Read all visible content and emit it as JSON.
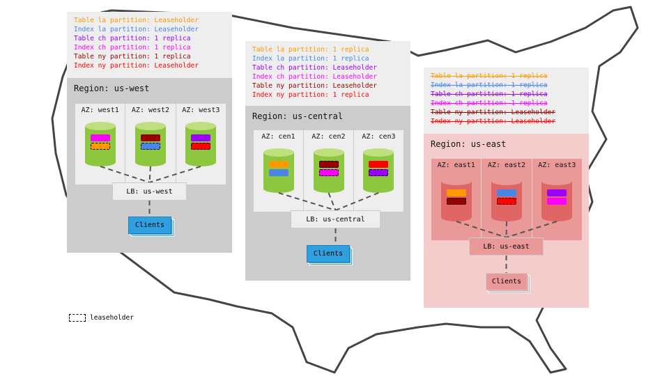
{
  "regions": [
    {
      "id": "us-west",
      "title": "Region: us-west",
      "strike": false,
      "theme": {
        "bg": "#cccccc",
        "az": "#eeeeee",
        "divider": "#cccccc",
        "cyl": "#8dc63f",
        "cyltop": "#bfe07f",
        "lb": "#eeeeee",
        "clients": "#2f9fdf",
        "clientsBorder": "#1d7fbf"
      },
      "lines": [
        {
          "text": "Table la partition: Leaseholder",
          "color": "#ff9900"
        },
        {
          "text": "Index la partition: Leaseholder",
          "color": "#4a86e8"
        },
        {
          "text": "Table ch partition: 1 replica",
          "color": "#9900ff"
        },
        {
          "text": "Index ch partition: 1 replica",
          "color": "#ff00ff"
        },
        {
          "text": "Table ny partition: 1 replica",
          "color": "#990000"
        },
        {
          "text": "Index ny partition: Leaseholder",
          "color": "#ff0000"
        }
      ],
      "azs": [
        {
          "label": "AZ: west1",
          "blocks": [
            {
              "color": "#ff00ff",
              "dashed": false
            },
            {
              "color": "#ff9900",
              "dashed": true
            }
          ]
        },
        {
          "label": "AZ: west2",
          "blocks": [
            {
              "color": "#990000",
              "dashed": false
            },
            {
              "color": "#4a86e8",
              "dashed": true
            }
          ]
        },
        {
          "label": "AZ: west3",
          "blocks": [
            {
              "color": "#9900ff",
              "dashed": false
            },
            {
              "color": "#ff0000",
              "dashed": true
            }
          ]
        }
      ],
      "lb": "LB: us-west",
      "clients": "Clients"
    },
    {
      "id": "us-central",
      "title": "Region: us-central",
      "strike": false,
      "theme": {
        "bg": "#cccccc",
        "az": "#eeeeee",
        "divider": "#cccccc",
        "cyl": "#8dc63f",
        "cyltop": "#bfe07f",
        "lb": "#eeeeee",
        "clients": "#2f9fdf",
        "clientsBorder": "#1d7fbf"
      },
      "lines": [
        {
          "text": "Table la partition: 1 replica",
          "color": "#ff9900"
        },
        {
          "text": "Index la partition: 1 replica",
          "color": "#4a86e8"
        },
        {
          "text": "Table ch partition: Leaseholder",
          "color": "#9900ff"
        },
        {
          "text": "Index ch partition: Leaseholder",
          "color": "#ff00ff"
        },
        {
          "text": "Table ny partition: Leaseholder",
          "color": "#990000"
        },
        {
          "text": "Index ny partition: 1 replica",
          "color": "#ff0000"
        }
      ],
      "azs": [
        {
          "label": "AZ: cen1",
          "blocks": [
            {
              "color": "#ff9900",
              "dashed": false
            },
            {
              "color": "#4a86e8",
              "dashed": false
            }
          ]
        },
        {
          "label": "AZ: cen2",
          "blocks": [
            {
              "color": "#990000",
              "dashed": true
            },
            {
              "color": "#ff00ff",
              "dashed": true
            }
          ]
        },
        {
          "label": "AZ: cen3",
          "blocks": [
            {
              "color": "#ff0000",
              "dashed": false
            },
            {
              "color": "#9900ff",
              "dashed": true
            }
          ]
        }
      ],
      "lb": "LB: us-central",
      "clients": "Clients"
    },
    {
      "id": "us-east",
      "title": "Region: us-east",
      "strike": true,
      "theme": {
        "bg": "#f4cccc",
        "az": "#ea9999",
        "divider": "#f4cccc",
        "cyl": "#e06666",
        "cyltop": "#ea9999",
        "lb": "#ea9999",
        "clients": "#ea9999",
        "clientsBorder": "#cccccc"
      },
      "lines": [
        {
          "text": "Table la partition: 1 replica",
          "color": "#ff9900"
        },
        {
          "text": "Index la partition: 1 replica",
          "color": "#4a86e8"
        },
        {
          "text": "Table ch partition: 1 replica",
          "color": "#9900ff"
        },
        {
          "text": "Index ch partition: 1 replica",
          "color": "#ff00ff"
        },
        {
          "text": "Table ny partition: Leaseholder",
          "color": "#990000"
        },
        {
          "text": "Index ny partition: Leaseholder",
          "color": "#ff0000"
        }
      ],
      "azs": [
        {
          "label": "AZ: east1",
          "blocks": [
            {
              "color": "#ff9900",
              "dashed": false
            },
            {
              "color": "#990000",
              "dashed": true
            }
          ]
        },
        {
          "label": "AZ: east2",
          "blocks": [
            {
              "color": "#4a86e8",
              "dashed": false
            },
            {
              "color": "#ff0000",
              "dashed": true
            }
          ]
        },
        {
          "label": "AZ: east3",
          "blocks": [
            {
              "color": "#9900ff",
              "dashed": false
            },
            {
              "color": "#ff00ff",
              "dashed": false
            }
          ]
        }
      ],
      "lb": "LB: us-east",
      "clients": "Clients"
    }
  ],
  "legend": {
    "label": "leaseholder"
  }
}
